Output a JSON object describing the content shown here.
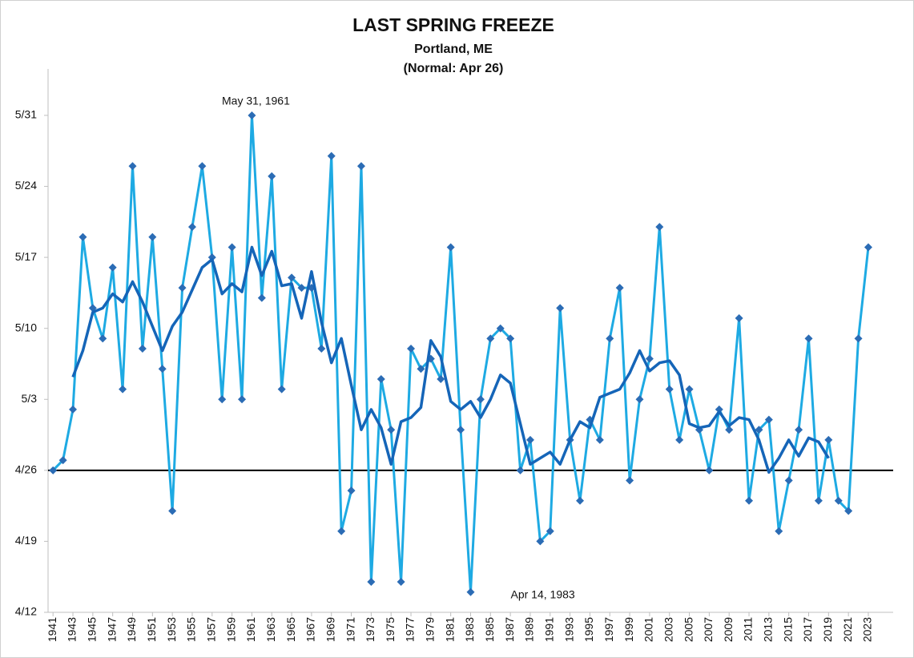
{
  "chart_data": {
    "type": "line",
    "title": "LAST SPRING FREEZE",
    "subtitle": [
      "Portland, ME",
      "(Normal: Apr 26)"
    ],
    "x": [
      1941,
      1942,
      1943,
      1944,
      1945,
      1946,
      1947,
      1948,
      1949,
      1950,
      1951,
      1952,
      1953,
      1954,
      1955,
      1956,
      1957,
      1958,
      1959,
      1960,
      1961,
      1962,
      1963,
      1964,
      1965,
      1966,
      1967,
      1968,
      1969,
      1970,
      1971,
      1972,
      1973,
      1974,
      1975,
      1976,
      1977,
      1978,
      1979,
      1980,
      1981,
      1982,
      1983,
      1984,
      1985,
      1986,
      1987,
      1988,
      1989,
      1990,
      1991,
      1992,
      1993,
      1994,
      1995,
      1996,
      1997,
      1998,
      1999,
      2000,
      2001,
      2002,
      2003,
      2004,
      2005,
      2006,
      2007,
      2008,
      2009,
      2010,
      2011,
      2012,
      2013,
      2014,
      2015,
      2016,
      2017,
      2018,
      2019,
      2020,
      2021,
      2022,
      2023
    ],
    "series": [
      {
        "color": "#1eaae3",
        "marker_color": "#2b6cb5",
        "markers": true,
        "values": [
          116,
          117,
          122,
          139,
          132,
          129,
          136,
          124,
          146,
          128,
          139,
          126,
          112,
          134,
          140,
          146,
          137,
          123,
          138,
          123,
          151,
          133,
          145,
          124,
          135,
          134,
          134,
          128,
          147,
          110,
          114,
          146,
          105,
          125,
          120,
          105,
          128,
          126,
          127,
          125,
          138,
          120,
          104,
          123,
          129,
          130,
          129,
          116,
          119,
          109,
          110,
          132,
          119,
          113,
          121,
          119,
          129,
          134,
          115,
          123,
          127,
          140,
          124,
          119,
          124,
          120,
          116,
          122,
          120,
          131,
          113,
          120,
          121,
          110,
          115,
          120,
          129,
          113,
          119,
          113,
          112,
          129,
          138
        ]
      },
      {
        "color": "#1565b8",
        "markers": false,
        "values": [
          null,
          null,
          125.2,
          127.8,
          131.6,
          132,
          133.4,
          132.6,
          134.6,
          132.6,
          130.2,
          127.8,
          130.2,
          131.6,
          133.8,
          136,
          136.8,
          133.4,
          134.4,
          133.6,
          138,
          135.2,
          137.6,
          134.2,
          134.4,
          131,
          135.6,
          130.6,
          126.6,
          129,
          124.4,
          120,
          122,
          120.2,
          116.6,
          120.8,
          121.2,
          122.2,
          128.8,
          127.2,
          122.8,
          122,
          122.8,
          121.2,
          123,
          125.4,
          124.6,
          120.6,
          116.6,
          117.2,
          117.8,
          116.6,
          119,
          120.8,
          120.2,
          123.2,
          123.6,
          124,
          125.6,
          127.8,
          125.8,
          126.6,
          126.8,
          125.4,
          120.6,
          120.2,
          120.4,
          121.8,
          120.4,
          121.2,
          121,
          119,
          115.8,
          117.2,
          119,
          117.4,
          119.2,
          118.8,
          117.2,
          null,
          null,
          null,
          null
        ]
      }
    ],
    "reference_line": {
      "value": 116,
      "color": "#000000"
    },
    "annotations": [
      {
        "text": "May 31, 1961",
        "x": 1961,
        "y": 151,
        "position": "above"
      },
      {
        "text": "Apr 14, 1983",
        "x": 1983,
        "y": 104,
        "position": "below-right"
      }
    ],
    "xlim": [
      1940.5,
      2025.5
    ],
    "xticks": [
      1941,
      1943,
      1945,
      1947,
      1949,
      1951,
      1953,
      1955,
      1957,
      1959,
      1961,
      1963,
      1965,
      1967,
      1969,
      1971,
      1973,
      1975,
      1977,
      1979,
      1981,
      1983,
      1985,
      1987,
      1989,
      1991,
      1993,
      1995,
      1997,
      1999,
      2001,
      2003,
      2005,
      2007,
      2009,
      2011,
      2013,
      2015,
      2017,
      2019,
      2021,
      2023
    ],
    "ylim": [
      102,
      154
    ],
    "yticks": [
      {
        "value": 102,
        "label": "4/12"
      },
      {
        "value": 109,
        "label": "4/19"
      },
      {
        "value": 116,
        "label": "4/26"
      },
      {
        "value": 123,
        "label": "5/3"
      },
      {
        "value": 130,
        "label": "5/10"
      },
      {
        "value": 137,
        "label": "5/17"
      },
      {
        "value": 144,
        "label": "5/24"
      },
      {
        "value": 151,
        "label": "5/31"
      }
    ]
  }
}
